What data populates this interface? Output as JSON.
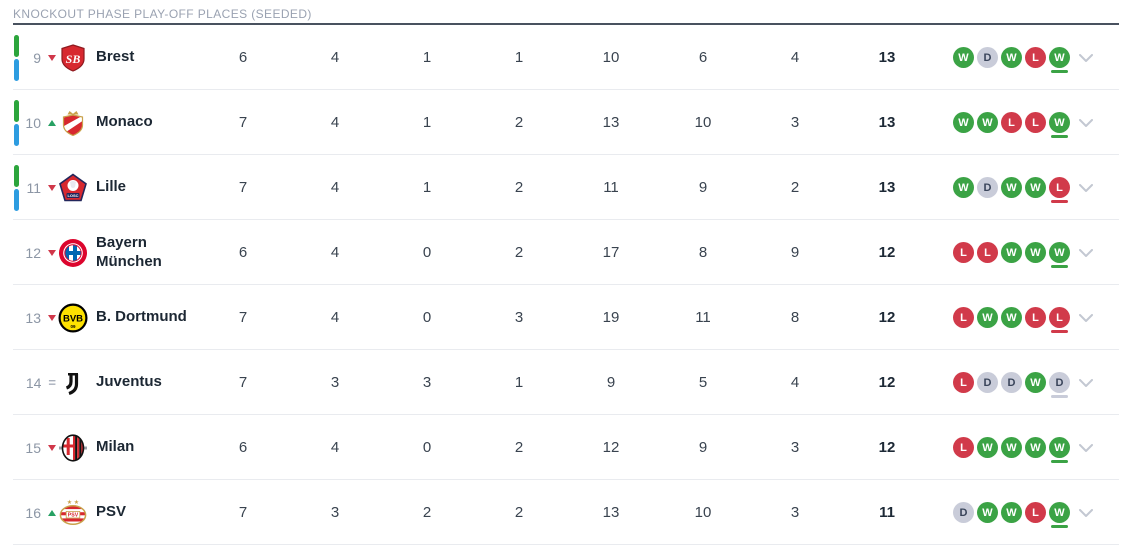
{
  "header": {
    "title": "KNOCKOUT PHASE PLAY-OFF PLACES (SEEDED)"
  },
  "colors": {
    "win": "#3ba345",
    "loss": "#d13a4a",
    "draw": "#c9ccd9",
    "bar-green": "#2ca53c",
    "bar-blue": "#2d9ce0",
    "accent-down": "#d0374a",
    "accent-up": "#27a163"
  },
  "table": {
    "rows": [
      {
        "position": "9",
        "movement": "down",
        "team": "Brest",
        "badge": "brest",
        "played": "6",
        "won": "4",
        "drawn": "1",
        "lost": "1",
        "goals_for": "10",
        "goals_against": "6",
        "goal_diff": "4",
        "points": "13",
        "form": [
          "W",
          "D",
          "W",
          "L",
          "W"
        ],
        "zone_bar": true
      },
      {
        "position": "10",
        "movement": "up",
        "team": "Monaco",
        "badge": "monaco",
        "played": "7",
        "won": "4",
        "drawn": "1",
        "lost": "2",
        "goals_for": "13",
        "goals_against": "10",
        "goal_diff": "3",
        "points": "13",
        "form": [
          "W",
          "W",
          "L",
          "L",
          "W"
        ],
        "zone_bar": true
      },
      {
        "position": "11",
        "movement": "down",
        "team": "Lille",
        "badge": "lille",
        "played": "7",
        "won": "4",
        "drawn": "1",
        "lost": "2",
        "goals_for": "11",
        "goals_against": "9",
        "goal_diff": "2",
        "points": "13",
        "form": [
          "W",
          "D",
          "W",
          "W",
          "L"
        ],
        "zone_bar": true
      },
      {
        "position": "12",
        "movement": "down",
        "team": "Bayern München",
        "badge": "bayern",
        "played": "6",
        "won": "4",
        "drawn": "0",
        "lost": "2",
        "goals_for": "17",
        "goals_against": "8",
        "goal_diff": "9",
        "points": "12",
        "form": [
          "L",
          "L",
          "W",
          "W",
          "W"
        ],
        "zone_bar": false
      },
      {
        "position": "13",
        "movement": "down",
        "team": "B. Dortmund",
        "badge": "dortmund",
        "played": "7",
        "won": "4",
        "drawn": "0",
        "lost": "3",
        "goals_for": "19",
        "goals_against": "11",
        "goal_diff": "8",
        "points": "12",
        "form": [
          "L",
          "W",
          "W",
          "L",
          "L"
        ],
        "zone_bar": false
      },
      {
        "position": "14",
        "movement": "same",
        "team": "Juventus",
        "badge": "juventus",
        "played": "7",
        "won": "3",
        "drawn": "3",
        "lost": "1",
        "goals_for": "9",
        "goals_against": "5",
        "goal_diff": "4",
        "points": "12",
        "form": [
          "L",
          "D",
          "D",
          "W",
          "D"
        ],
        "zone_bar": false
      },
      {
        "position": "15",
        "movement": "down",
        "team": "Milan",
        "badge": "milan",
        "played": "6",
        "won": "4",
        "drawn": "0",
        "lost": "2",
        "goals_for": "12",
        "goals_against": "9",
        "goal_diff": "3",
        "points": "12",
        "form": [
          "L",
          "W",
          "W",
          "W",
          "W"
        ],
        "zone_bar": false
      },
      {
        "position": "16",
        "movement": "up",
        "team": "PSV",
        "badge": "psv",
        "played": "7",
        "won": "3",
        "drawn": "2",
        "lost": "2",
        "goals_for": "13",
        "goals_against": "10",
        "goal_diff": "3",
        "points": "11",
        "form": [
          "D",
          "W",
          "W",
          "L",
          "W"
        ],
        "zone_bar": false
      }
    ]
  }
}
